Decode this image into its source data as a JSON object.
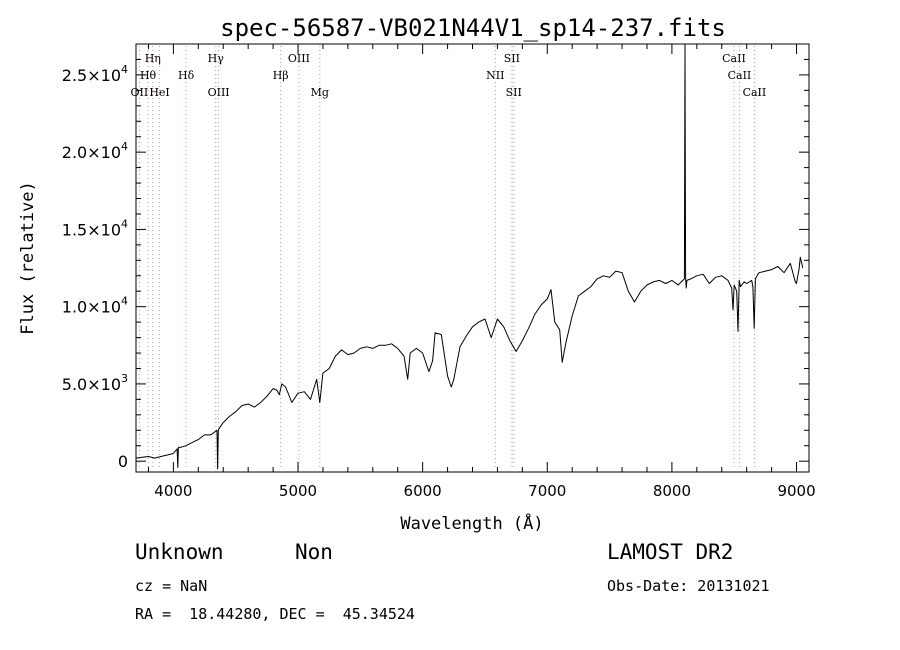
{
  "chart_data": {
    "type": "line",
    "title": "spec-56587-VB021N44V1_sp14-237.fits",
    "xlabel": "Wavelength (Å)",
    "ylabel": "Flux (relative)",
    "xlim": [
      3700,
      9100
    ],
    "ylim": [
      -700,
      27000
    ],
    "grid": false,
    "x_ticks": [
      {
        "value": 4000,
        "label": "4000"
      },
      {
        "value": 5000,
        "label": "5000"
      },
      {
        "value": 6000,
        "label": "6000"
      },
      {
        "value": 7000,
        "label": "7000"
      },
      {
        "value": 8000,
        "label": "8000"
      },
      {
        "value": 9000,
        "label": "9000"
      }
    ],
    "y_ticks": [
      {
        "value": 0,
        "mant": "0",
        "exp": ""
      },
      {
        "value": 5000,
        "mant": "5.0×10",
        "exp": "3"
      },
      {
        "value": 10000,
        "mant": "1.0×10",
        "exp": "4"
      },
      {
        "value": 15000,
        "mant": "1.5×10",
        "exp": "4"
      },
      {
        "value": 20000,
        "mant": "2.0×10",
        "exp": "4"
      },
      {
        "value": 25000,
        "mant": "2.5×10",
        "exp": "4"
      }
    ],
    "lines": [
      {
        "label": "Hη",
        "wl": 3835,
        "row": 0
      },
      {
        "label": "Hθ",
        "wl": 3797,
        "row": 1
      },
      {
        "label": "OII",
        "wl": 3727,
        "row": 2
      },
      {
        "label": "HeI",
        "wl": 3889,
        "row": 2
      },
      {
        "label": "Hδ",
        "wl": 4102,
        "row": 1
      },
      {
        "label": "Hγ",
        "wl": 4340,
        "row": 0
      },
      {
        "label": "OIII",
        "wl": 4363,
        "row": 2
      },
      {
        "label": "Hβ",
        "wl": 4861,
        "row": 1
      },
      {
        "label": "OIII",
        "wl": 5007,
        "row": 0
      },
      {
        "label": "Mg",
        "wl": 5175,
        "row": 2
      },
      {
        "label": "NII",
        "wl": 6583,
        "row": 1
      },
      {
        "label": "SII",
        "wl": 6716,
        "row": 0
      },
      {
        "label": "SII",
        "wl": 6731,
        "row": 2
      },
      {
        "label": "CaII",
        "wl": 8498,
        "row": 0
      },
      {
        "label": "CaII",
        "wl": 8542,
        "row": 1
      },
      {
        "label": "CaII",
        "wl": 8662,
        "row": 2
      }
    ],
    "series": [
      {
        "x": [
          3700,
          3750,
          3800,
          3850,
          3900,
          3950,
          4000,
          4030,
          4035,
          4040,
          4060,
          4100,
          4150,
          4200,
          4250,
          4300,
          4350,
          4355,
          4360,
          4365,
          4400,
          4450,
          4500,
          4550,
          4600,
          4650,
          4700,
          4750,
          4800,
          4830,
          4850,
          4870,
          4900,
          4950,
          5000,
          5050,
          5100,
          5150,
          5175,
          5200,
          5250,
          5300,
          5350,
          5400,
          5450,
          5500,
          5550,
          5600,
          5650,
          5700,
          5750,
          5800,
          5850,
          5880,
          5900,
          5950,
          6000,
          6050,
          6080,
          6100,
          6150,
          6200,
          6230,
          6250,
          6300,
          6350,
          6400,
          6450,
          6500,
          6550,
          6600,
          6650,
          6700,
          6750,
          6800,
          6850,
          6900,
          6950,
          7000,
          7030,
          7060,
          7100,
          7120,
          7150,
          7200,
          7250,
          7300,
          7350,
          7400,
          7450,
          7500,
          7550,
          7600,
          7650,
          7700,
          7750,
          7800,
          7850,
          7900,
          7950,
          8000,
          8050,
          8100,
          8105,
          8110,
          8115,
          8120,
          8150,
          8200,
          8250,
          8300,
          8350,
          8400,
          8450,
          8480,
          8490,
          8500,
          8520,
          8530,
          8540,
          8550,
          8580,
          8600,
          8640,
          8650,
          8660,
          8670,
          8690,
          8700,
          8750,
          8800,
          8850,
          8900,
          8950,
          8990,
          9000,
          9010,
          9020,
          9030,
          9050
        ],
        "y": [
          200,
          250,
          300,
          200,
          300,
          400,
          500,
          800,
          -400,
          900,
          900,
          1000,
          1200,
          1400,
          1700,
          1700,
          2000,
          -500,
          2000,
          2100,
          2500,
          2900,
          3200,
          3600,
          3700,
          3500,
          3800,
          4200,
          4700,
          4600,
          4300,
          5000,
          4800,
          3800,
          4400,
          4500,
          4000,
          5300,
          3800,
          5700,
          6000,
          6800,
          7200,
          6900,
          7000,
          7300,
          7400,
          7300,
          7500,
          7500,
          7600,
          7300,
          6800,
          5300,
          7000,
          7300,
          7000,
          5800,
          6500,
          8300,
          8200,
          5500,
          4800,
          5300,
          7400,
          8100,
          8700,
          9000,
          9200,
          8000,
          9200,
          8700,
          7800,
          7100,
          7800,
          8600,
          9500,
          10100,
          10500,
          11100,
          9000,
          8500,
          6400,
          7700,
          9400,
          10700,
          11000,
          11300,
          11800,
          12000,
          11900,
          12300,
          12200,
          11000,
          10300,
          11000,
          11400,
          11600,
          11700,
          11500,
          11700,
          11400,
          11800,
          27000,
          11900,
          11200,
          11700,
          11800,
          12000,
          12100,
          11500,
          11900,
          12000,
          11700,
          11200,
          9800,
          11400,
          11000,
          8400,
          11700,
          11300,
          11600,
          11500,
          11700,
          11300,
          8600,
          11800,
          12100,
          12200,
          12300,
          12400,
          12600,
          12200,
          12800,
          11600,
          11500,
          12000,
          12400,
          13200,
          12500
        ]
      }
    ]
  },
  "info": {
    "object_type": "Unknown",
    "object_class": "Non",
    "cz": "cz = NaN",
    "radec": "RA =  18.44280, DEC =  45.34524",
    "survey": "LAMOST DR2",
    "obs_date": "Obs-Date: 20131021"
  }
}
